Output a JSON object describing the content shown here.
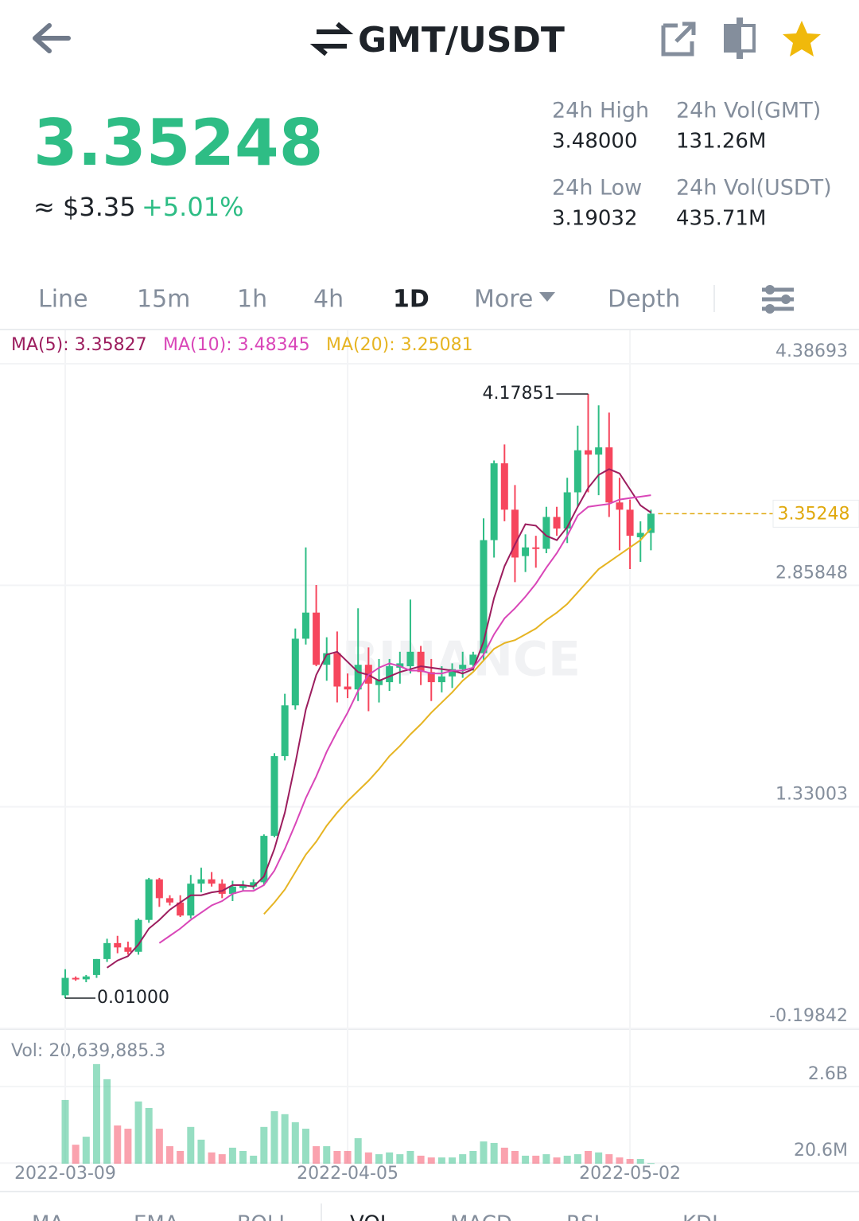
{
  "header": {
    "title": "GMT/USDT"
  },
  "ticker": {
    "price": "3.35248",
    "fiat": "≈ $3.35",
    "change": "+5.01%",
    "stats": [
      {
        "label": "24h High",
        "value": "3.48000"
      },
      {
        "label": "24h Vol(GMT)",
        "value": "131.26M"
      },
      {
        "label": "24h Low",
        "value": "3.19032"
      },
      {
        "label": "24h Vol(USDT)",
        "value": "435.71M"
      }
    ]
  },
  "tabs": [
    "Line",
    "15m",
    "1h",
    "4h",
    "1D",
    "More",
    "Depth"
  ],
  "active_tab": "1D",
  "chart_data": {
    "type": "candlestick",
    "categories": [
      "2022-03-09",
      null,
      null,
      null,
      null,
      null,
      null,
      null,
      null,
      null,
      null,
      null,
      null,
      null,
      null,
      null,
      null,
      null,
      null,
      null,
      null,
      null,
      null,
      null,
      null,
      null,
      null,
      "2022-04-05",
      null,
      null,
      null,
      null,
      null,
      null,
      null,
      null,
      null,
      null,
      null,
      null,
      null,
      null,
      null,
      null,
      null,
      null,
      null,
      null,
      null,
      null,
      null,
      null,
      null,
      null,
      "2022-05-02",
      null,
      null
    ],
    "open": [
      0.03,
      0.15,
      0.14,
      0.17,
      0.28,
      0.39,
      0.36,
      0.33,
      0.55,
      0.83,
      0.7,
      0.67,
      0.58,
      0.8,
      0.83,
      0.8,
      0.73,
      0.77,
      0.78,
      0.81,
      1.13,
      1.68,
      2.03,
      2.49,
      2.67,
      2.31,
      2.39,
      2.16,
      2.14,
      2.31,
      2.17,
      2.19,
      2.29,
      2.3,
      2.4,
      2.26,
      2.19,
      2.23,
      2.28,
      2.31,
      2.39,
      3.17,
      3.7,
      3.38,
      3.06,
      3.12,
      3.11,
      3.33,
      3.25,
      3.5,
      3.79,
      3.76,
      3.81,
      3.43,
      3.38,
      3.19,
      3.22
    ],
    "high": [
      0.21,
      0.16,
      0.17,
      0.28,
      0.42,
      0.44,
      0.4,
      0.56,
      0.84,
      0.84,
      0.72,
      0.72,
      0.86,
      0.91,
      0.88,
      0.83,
      0.82,
      0.82,
      0.83,
      1.14,
      1.7,
      2.11,
      2.56,
      3.12,
      2.86,
      2.5,
      2.54,
      2.25,
      2.7,
      2.43,
      2.35,
      2.35,
      2.4,
      2.76,
      2.44,
      2.35,
      2.3,
      2.32,
      2.4,
      2.4,
      3.32,
      3.72,
      3.83,
      3.55,
      3.21,
      3.2,
      3.4,
      3.4,
      3.6,
      3.96,
      4.17851,
      4.1,
      4.05,
      3.6,
      3.45,
      3.3,
      3.38
    ],
    "low": [
      0.01,
      0.13,
      0.12,
      0.15,
      0.26,
      0.32,
      0.31,
      0.31,
      0.53,
      0.64,
      0.65,
      0.57,
      0.56,
      0.74,
      0.78,
      0.7,
      0.68,
      0.75,
      0.76,
      0.79,
      1.12,
      1.65,
      2.0,
      2.45,
      2.3,
      2.2,
      2.05,
      2.08,
      2.06,
      1.99,
      2.05,
      2.13,
      2.18,
      2.25,
      2.17,
      2.06,
      2.12,
      2.15,
      2.22,
      2.27,
      2.34,
      3.05,
      3.3,
      2.88,
      2.95,
      2.98,
      3.08,
      3.2,
      3.15,
      3.4,
      3.5,
      3.48,
      3.33,
      3.1,
      2.97,
      3.02,
      3.1
    ],
    "close": [
      0.15,
      0.14,
      0.16,
      0.28,
      0.39,
      0.36,
      0.33,
      0.55,
      0.83,
      0.7,
      0.67,
      0.58,
      0.8,
      0.83,
      0.8,
      0.73,
      0.78,
      0.79,
      0.81,
      1.13,
      1.68,
      2.03,
      2.49,
      2.67,
      2.31,
      2.39,
      2.16,
      2.14,
      2.31,
      2.18,
      2.21,
      2.3,
      2.32,
      2.4,
      2.26,
      2.19,
      2.23,
      2.28,
      2.31,
      2.38,
      3.17,
      3.7,
      3.38,
      3.05,
      3.12,
      3.11,
      3.33,
      3.25,
      3.5,
      3.79,
      3.76,
      3.81,
      3.43,
      3.38,
      3.2,
      3.22,
      3.35248
    ],
    "series": [
      {
        "name": "MA(5): 3.35827",
        "color": "#9c1d5e",
        "values": [
          null,
          null,
          null,
          null,
          0.22,
          0.27,
          0.3,
          0.38,
          0.49,
          0.55,
          0.62,
          0.67,
          0.72,
          0.72,
          0.74,
          0.75,
          0.79,
          0.79,
          0.78,
          0.85,
          1.04,
          1.29,
          1.63,
          2.0,
          2.24,
          2.38,
          2.4,
          2.33,
          2.26,
          2.24,
          2.2,
          2.23,
          2.26,
          2.28,
          2.3,
          2.29,
          2.28,
          2.27,
          2.25,
          2.28,
          2.47,
          2.77,
          2.99,
          3.14,
          3.28,
          3.27,
          3.2,
          3.17,
          3.26,
          3.4,
          3.53,
          3.62,
          3.66,
          3.63,
          3.52,
          3.41,
          3.36
        ]
      },
      {
        "name": "MA(10): 3.48345",
        "color": "#d946b8",
        "values": [
          null,
          null,
          null,
          null,
          null,
          null,
          null,
          null,
          null,
          0.39,
          0.44,
          0.49,
          0.55,
          0.6,
          0.65,
          0.68,
          0.73,
          0.75,
          0.75,
          0.79,
          0.89,
          1.04,
          1.21,
          1.39,
          1.54,
          1.71,
          1.85,
          1.98,
          2.13,
          2.24,
          2.29,
          2.32,
          2.3,
          2.27,
          2.27,
          2.25,
          2.25,
          2.27,
          2.27,
          2.29,
          2.38,
          2.52,
          2.63,
          2.7,
          2.78,
          2.87,
          2.98,
          3.08,
          3.2,
          3.34,
          3.4,
          3.41,
          3.42,
          3.45,
          3.46,
          3.47,
          3.48
        ]
      },
      {
        "name": "MA(20): 3.25081",
        "color": "#e6b422",
        "values": [
          null,
          null,
          null,
          null,
          null,
          null,
          null,
          null,
          null,
          null,
          null,
          null,
          null,
          null,
          null,
          null,
          null,
          null,
          null,
          0.59,
          0.67,
          0.76,
          0.88,
          1.0,
          1.09,
          1.2,
          1.29,
          1.37,
          1.44,
          1.51,
          1.59,
          1.68,
          1.75,
          1.83,
          1.9,
          1.98,
          2.05,
          2.12,
          2.2,
          2.26,
          2.34,
          2.42,
          2.46,
          2.48,
          2.52,
          2.56,
          2.62,
          2.67,
          2.73,
          2.81,
          2.89,
          2.97,
          3.02,
          3.07,
          3.12,
          3.17,
          3.25
        ]
      }
    ],
    "up_color": "#2ebd85",
    "down_color": "#f6465d",
    "ylim": [
      -0.19842,
      4.38693
    ],
    "yticks": [
      4.38693,
      2.85848,
      1.33003,
      -0.19842
    ],
    "grid": true,
    "last_price": 3.35248,
    "last_price_color": "#e0a90e",
    "max_label": 4.17851,
    "min_label": {
      "value": 0.01,
      "label": "0.01000"
    },
    "watermark": "BINANCE"
  },
  "volume_chart": {
    "type": "bar",
    "label": "Vol: 20,639,885.3",
    "values": [
      2150000000,
      640000000,
      910000000,
      3360000000,
      2850000000,
      1290000000,
      1180000000,
      2100000000,
      1880000000,
      1180000000,
      590000000,
      430000000,
      1240000000,
      810000000,
      380000000,
      320000000,
      540000000,
      430000000,
      270000000,
      1240000000,
      1770000000,
      1670000000,
      1400000000,
      1180000000,
      590000000,
      590000000,
      430000000,
      430000000,
      860000000,
      380000000,
      320000000,
      380000000,
      320000000,
      430000000,
      270000000,
      210000000,
      210000000,
      210000000,
      320000000,
      430000000,
      750000000,
      700000000,
      540000000,
      430000000,
      270000000,
      270000000,
      320000000,
      210000000,
      270000000,
      320000000,
      430000000,
      380000000,
      320000000,
      210000000,
      160000000,
      160000000,
      20639885.3
    ],
    "ylim": [
      0,
      4350000000
    ],
    "yticks": [
      {
        "value": 2600000000,
        "label": "2.6B"
      },
      {
        "value": 20600000,
        "label": "20.6M"
      }
    ]
  },
  "indicator_tabs": [
    "MA",
    "EMA",
    "BOLL",
    "VOL",
    "MACD",
    "RSI",
    "KDJ"
  ]
}
